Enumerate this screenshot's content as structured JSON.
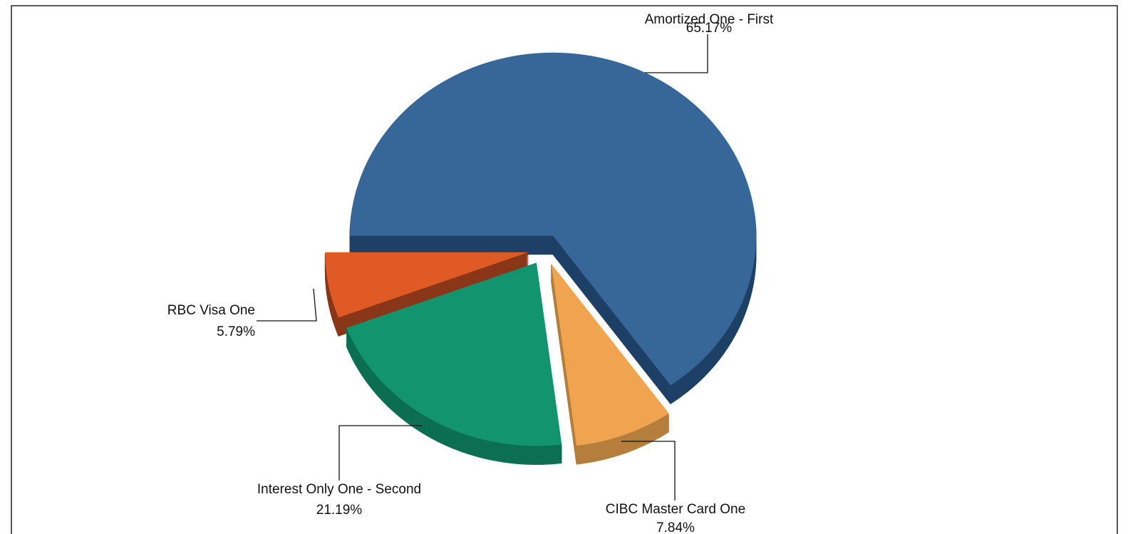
{
  "chart_data": {
    "type": "pie",
    "categories": [
      "Amortized One - First",
      "CIBC Master Card One",
      "Interest Only One - Second",
      "RBC Visa One"
    ],
    "values": [
      65.17,
      7.84,
      21.19,
      5.79
    ],
    "value_labels": [
      "65.17%",
      "7.84%",
      "21.19%",
      "5.79%"
    ],
    "colors": [
      "#376699",
      "#f0a44f",
      "#12946e",
      "#e05a26"
    ],
    "side_colors": [
      "#1e4066",
      "#b57e3c",
      "#0c6f52",
      "#8a3619"
    ]
  }
}
